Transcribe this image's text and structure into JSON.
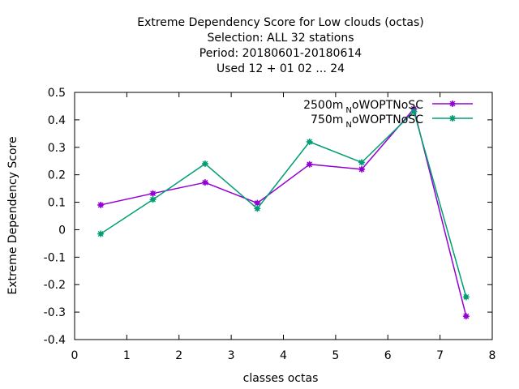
{
  "chart_data": {
    "type": "line",
    "title_lines": [
      "Extreme Dependency Score  for Low clouds (octas)",
      "Selection: ALL     32 stations",
      "Period: 20180601-20180614",
      "Used  12 + 01 02 ... 24"
    ],
    "xlabel": "classes octas",
    "ylabel": "Extreme Dependency Score",
    "xlim": [
      0,
      8
    ],
    "ylim": [
      -0.4,
      0.5
    ],
    "xticks": [
      0,
      1,
      2,
      3,
      4,
      5,
      6,
      7,
      8
    ],
    "yticks": [
      -0.4,
      -0.3,
      -0.2,
      -0.1,
      0,
      0.1,
      0.2,
      0.3,
      0.4,
      0.5
    ],
    "xtick_labels": [
      "0",
      "1",
      "2",
      "3",
      "4",
      "5",
      "6",
      "7",
      "8"
    ],
    "ytick_labels": [
      "-0.4",
      "-0.3",
      "-0.2",
      "-0.1",
      "0",
      "0.1",
      "0.2",
      "0.3",
      "0.4",
      "0.5"
    ],
    "grid": false,
    "legend_position": "top-right",
    "x": [
      0.5,
      1.5,
      2.5,
      3.5,
      4.5,
      5.5,
      6.5,
      7.5
    ],
    "series": [
      {
        "name_main": "2500m",
        "name_sub": "N",
        "name_rest": "oWOPTNoSC",
        "color": "#9400d3",
        "values": [
          0.09,
          0.132,
          0.172,
          0.097,
          0.238,
          0.22,
          0.44,
          -0.315
        ]
      },
      {
        "name_main": "750m",
        "name_sub": "N",
        "name_rest": "oWOPTNoSC",
        "color": "#009e73",
        "values": [
          -0.015,
          0.11,
          0.24,
          0.077,
          0.32,
          0.245,
          0.43,
          -0.245
        ]
      }
    ]
  }
}
